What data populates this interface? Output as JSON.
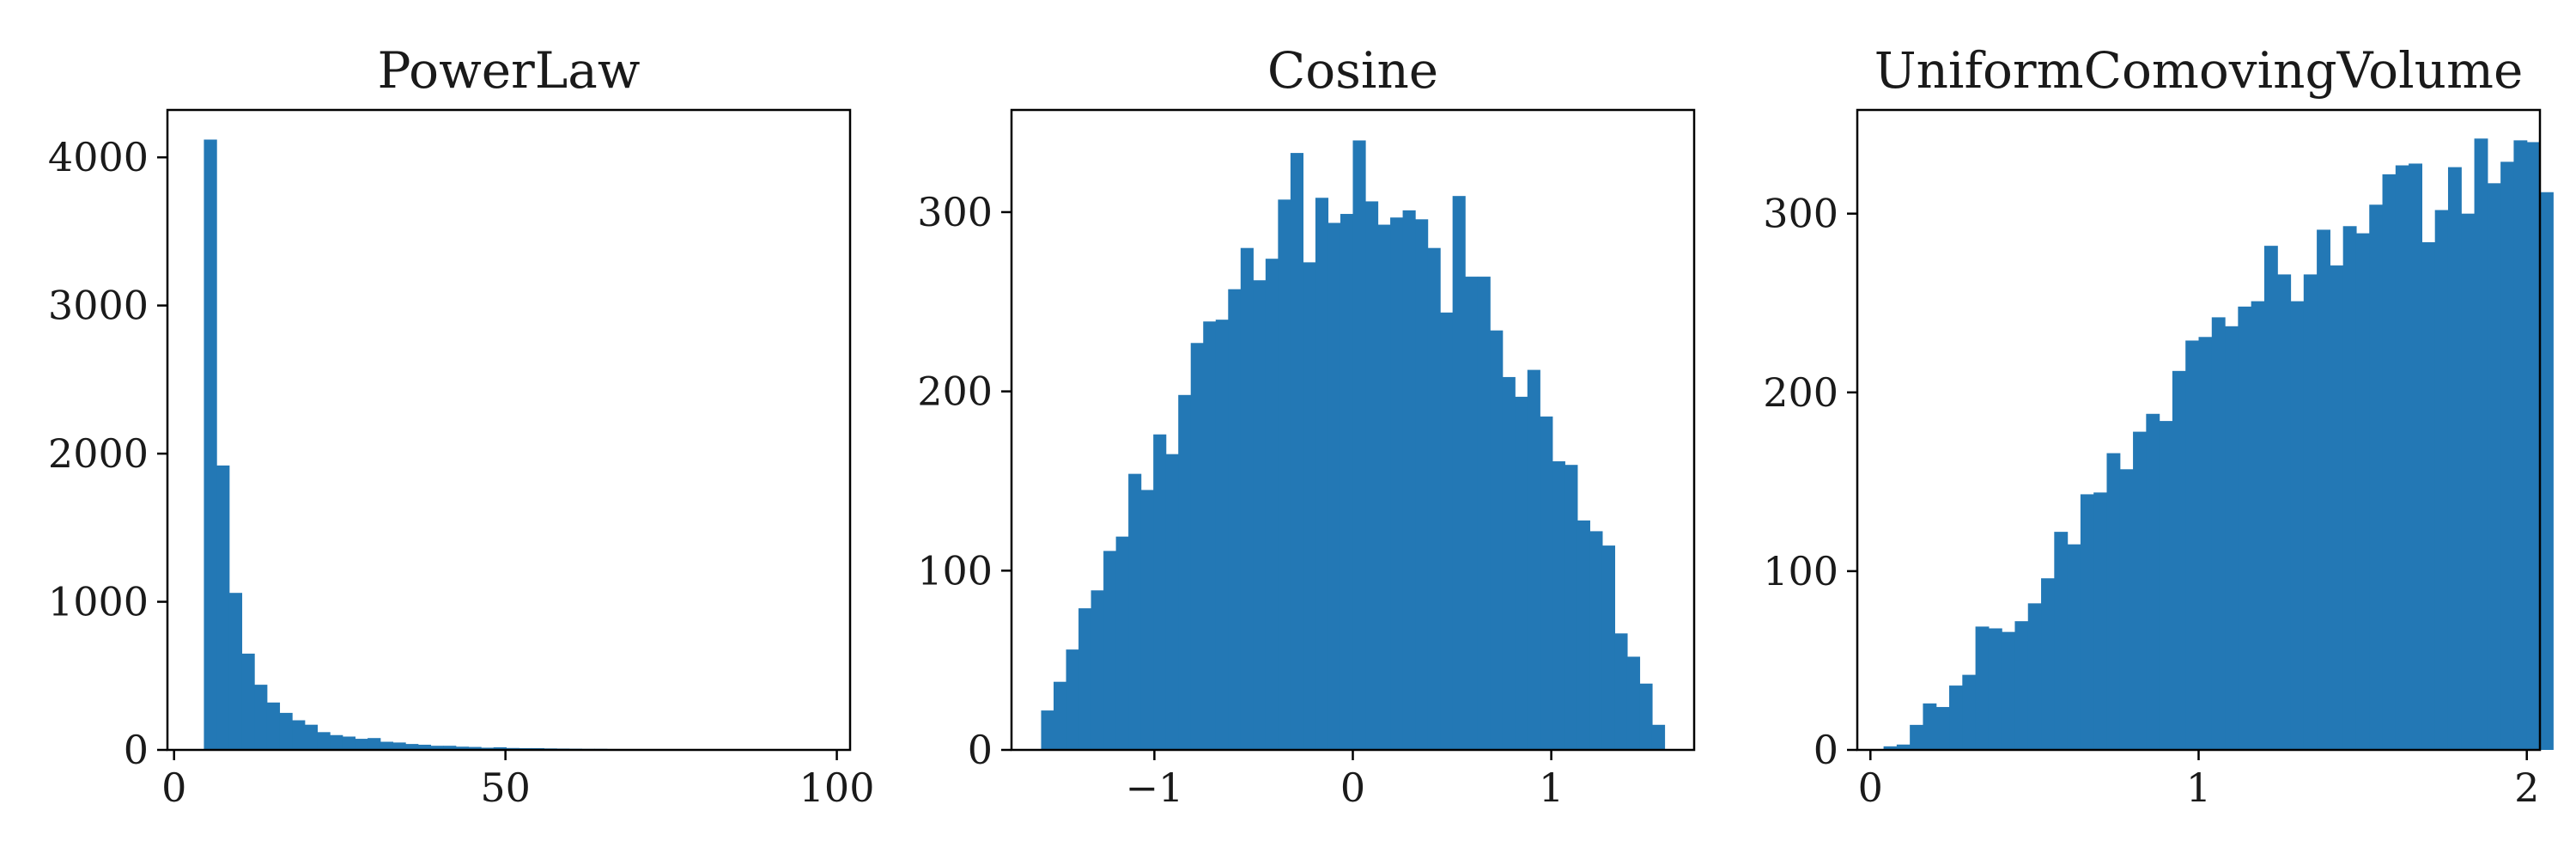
{
  "chart_data": [
    {
      "type": "bar",
      "title": "PowerLaw",
      "xlabel": "",
      "ylabel": "",
      "color": "#2378b5",
      "xlim": [
        -1,
        102
      ],
      "ylim": [
        0,
        4320
      ],
      "xticks": [
        0,
        50,
        100
      ],
      "xtick_labels": [
        "0",
        "50",
        "100"
      ],
      "yticks": [
        0,
        1000,
        2000,
        3000,
        4000
      ],
      "ytick_labels": [
        "0",
        "1000",
        "2000",
        "3000",
        "4000"
      ],
      "bin_start": 4.5,
      "bin_width": 1.9,
      "values": [
        4120,
        1920,
        1060,
        650,
        440,
        320,
        250,
        200,
        170,
        120,
        100,
        90,
        75,
        80,
        55,
        50,
        40,
        35,
        28,
        28,
        22,
        20,
        15,
        18,
        13,
        12,
        12,
        10,
        9,
        8,
        7,
        7,
        6,
        5,
        5,
        4,
        4,
        3,
        3,
        3,
        2,
        2,
        2,
        2,
        1,
        1,
        1,
        1,
        1,
        1
      ]
    },
    {
      "type": "bar",
      "title": "Cosine",
      "xlabel": "",
      "ylabel": "",
      "color": "#2378b5",
      "xlim": [
        -1.72,
        1.72
      ],
      "ylim": [
        0,
        357
      ],
      "xticks": [
        -1,
        0,
        1
      ],
      "xtick_labels": [
        "−1",
        "0",
        "1"
      ],
      "yticks": [
        0,
        100,
        200,
        300
      ],
      "ytick_labels": [
        "0",
        "100",
        "200",
        "300"
      ],
      "bin_start": -1.5708,
      "bin_width": 0.06283,
      "values": [
        22,
        38,
        56,
        79,
        89,
        111,
        119,
        154,
        145,
        176,
        165,
        198,
        227,
        239,
        240,
        257,
        280,
        262,
        274,
        307,
        333,
        272,
        308,
        294,
        299,
        340,
        306,
        293,
        297,
        301,
        296,
        280,
        244,
        309,
        264,
        264,
        234,
        208,
        197,
        212,
        186,
        161,
        159,
        128,
        122,
        114,
        65,
        52,
        37,
        14
      ]
    },
    {
      "type": "bar",
      "title": "UniformComovingVolume",
      "xlabel": "",
      "ylabel": "",
      "color": "#2378b5",
      "xlim": [
        -0.04,
        2.04
      ],
      "ylim": [
        0,
        358
      ],
      "xticks": [
        0,
        1,
        2
      ],
      "xtick_labels": [
        "0",
        "1",
        "2"
      ],
      "yticks": [
        0,
        100,
        200,
        300
      ],
      "ytick_labels": [
        "0",
        "100",
        "200",
        "300"
      ],
      "bin_start": 0,
      "bin_width": 0.04,
      "values": [
        0,
        2,
        3,
        14,
        26,
        24,
        36,
        42,
        69,
        68,
        66,
        72,
        82,
        96,
        122,
        115,
        143,
        144,
        166,
        157,
        178,
        188,
        184,
        212,
        229,
        231,
        242,
        237,
        248,
        251,
        282,
        266,
        251,
        266,
        291,
        271,
        293,
        289,
        305,
        322,
        327,
        328,
        284,
        302,
        326,
        300,
        342,
        317,
        329,
        341,
        340,
        312
      ]
    }
  ]
}
